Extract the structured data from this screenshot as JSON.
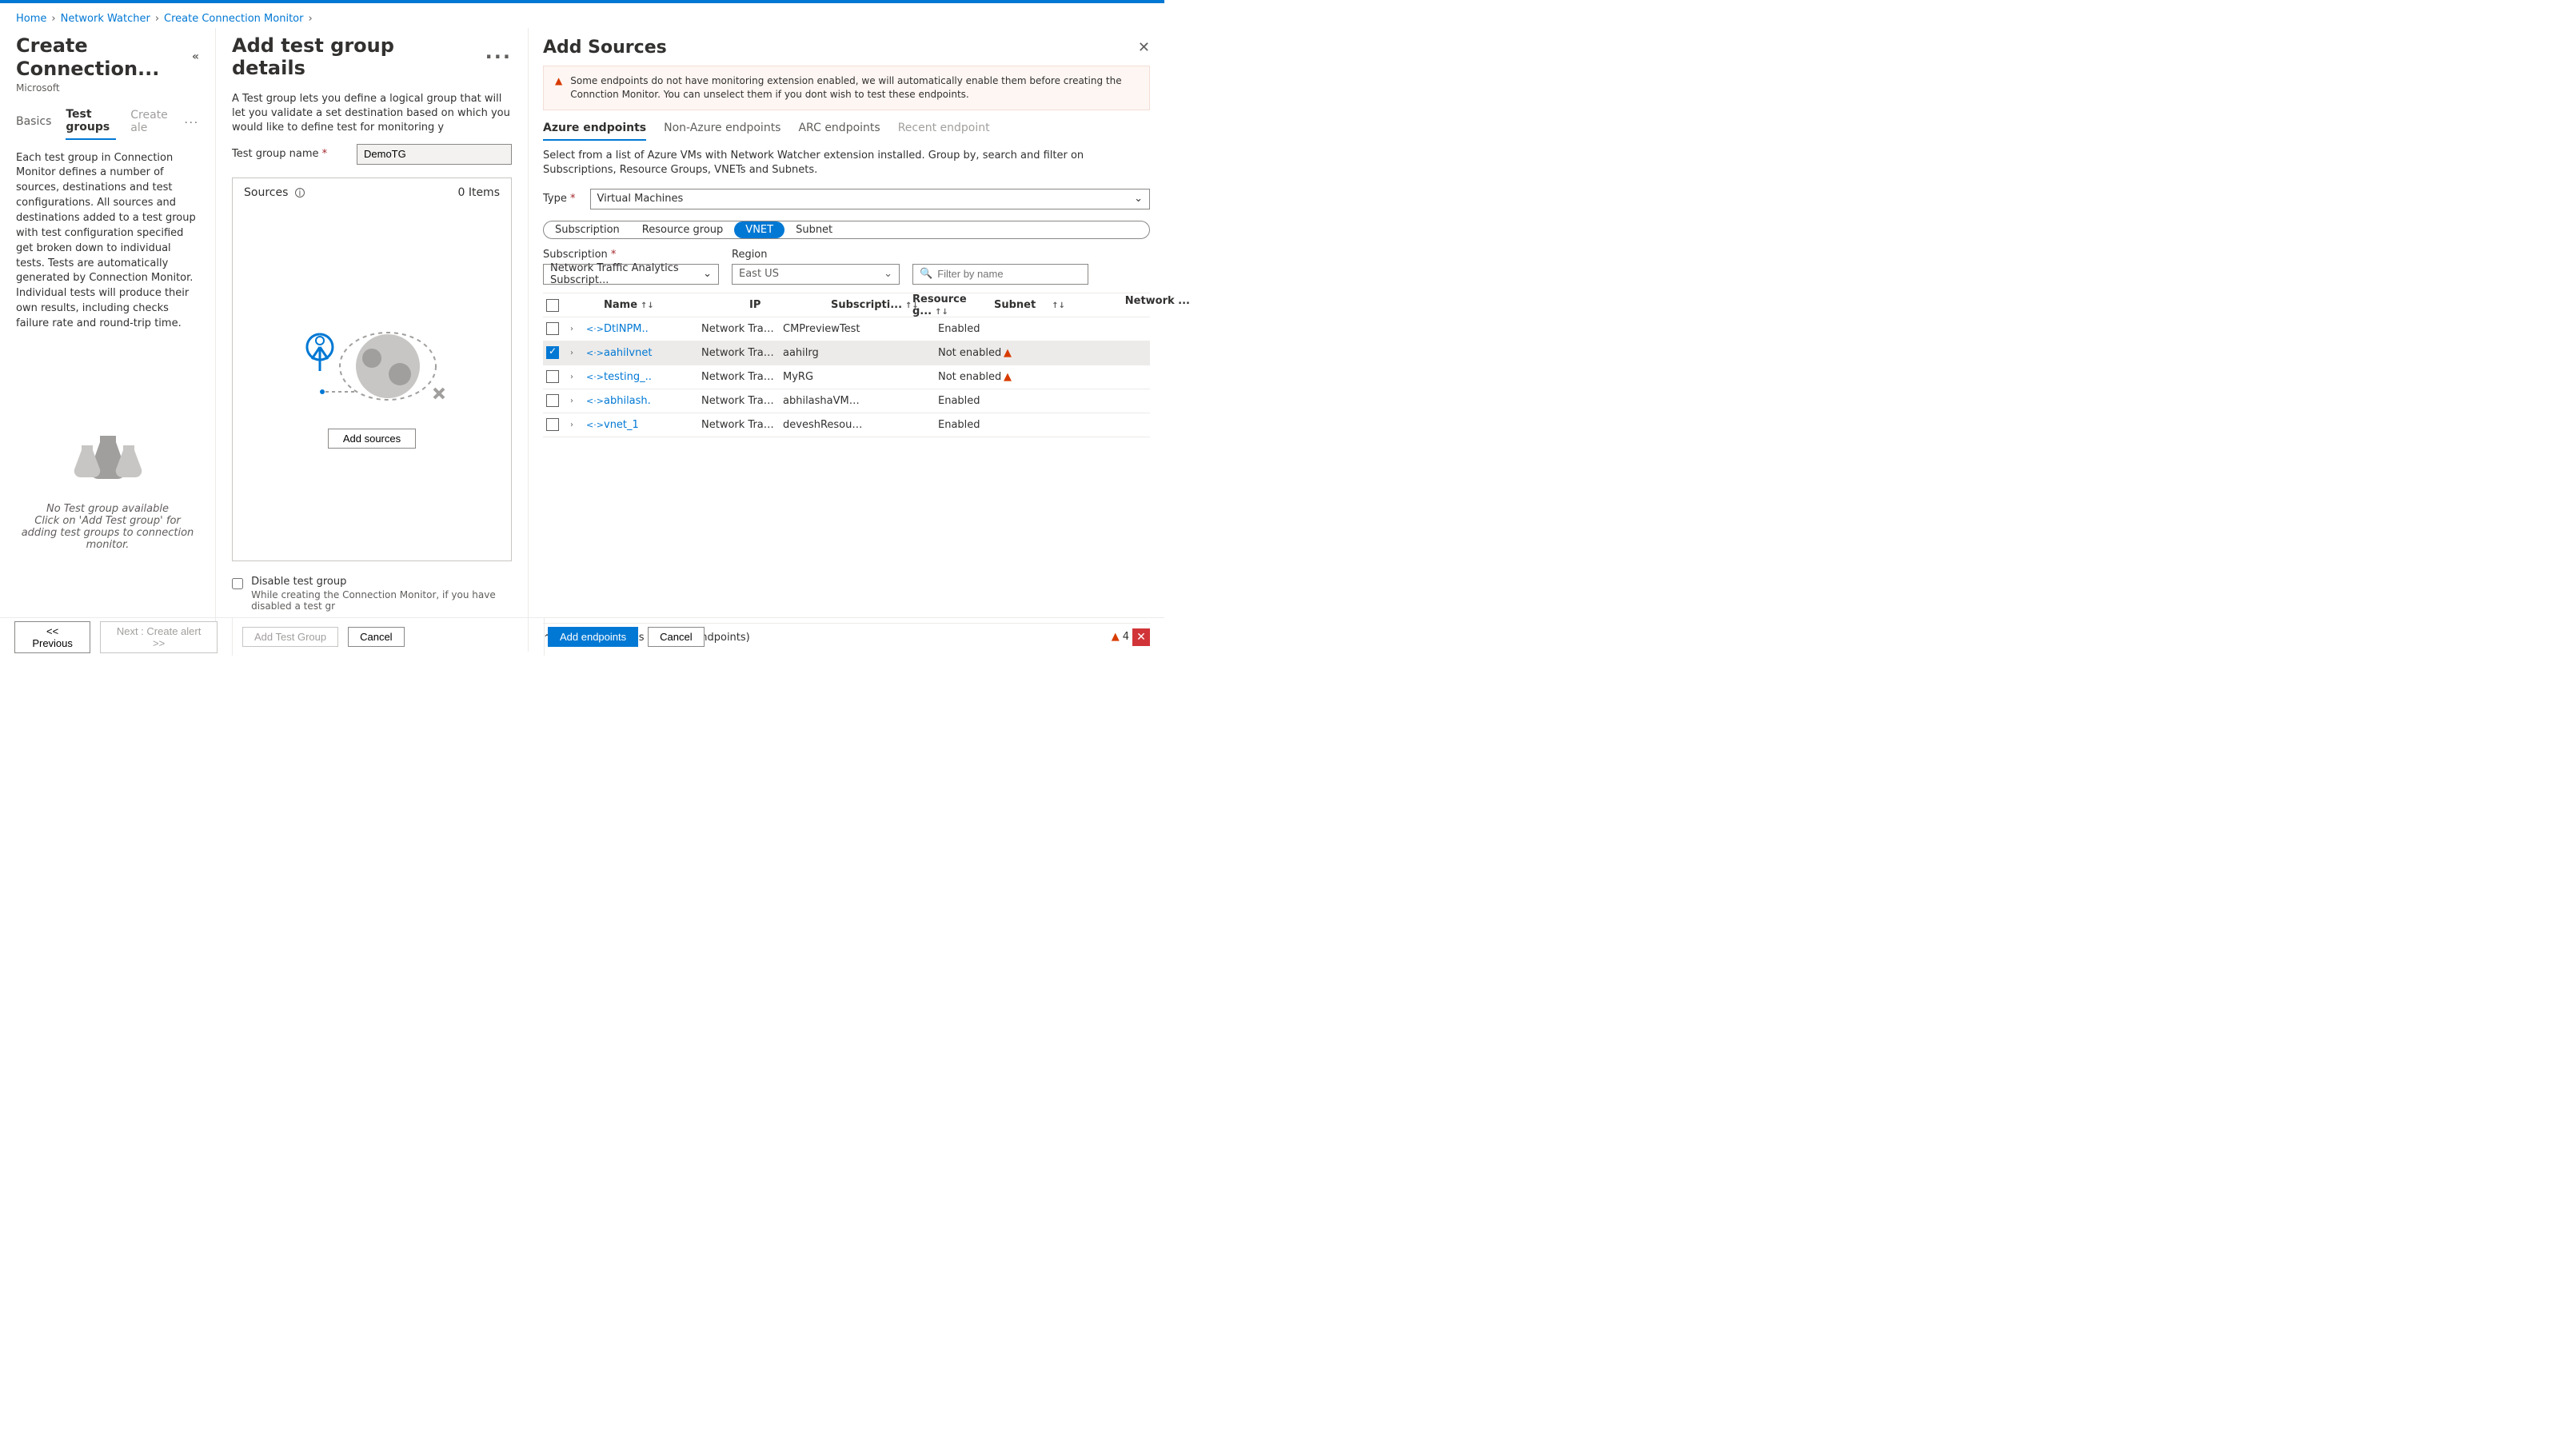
{
  "breadcrumb": {
    "home": "Home",
    "nw": "Network Watcher",
    "create": "Create Connection Monitor"
  },
  "leftpane": {
    "title": "Create Connection...",
    "subtitle": "Microsoft",
    "tabs": {
      "basics": "Basics",
      "testgroups": "Test groups",
      "alerts": "Create ale"
    },
    "desc": "Each test group in Connection Monitor defines a number of sources, destinations and test configurations. All sources and destinations added to a test group with test configuration specified get broken down to individual tests. Tests are automatically generated by Connection Monitor. Individual tests will produce their own results, including checks failure rate and round-trip time.",
    "empty_title": "No Test group available",
    "empty_sub": "Click on 'Add Test group' for adding test groups to connection monitor."
  },
  "midpane": {
    "title": "Add test group details",
    "desc": "A Test group lets you define a logical group that will let you validate a set destination based on which you would like to define test for monitoring y",
    "form": {
      "tgname_label": "Test group name",
      "tgname_value": "DemoTG"
    },
    "sources_header": "Sources",
    "items_count": "0 Items",
    "add_sources_btn": "Add sources",
    "disable_label": "Disable test group",
    "disable_sub": "While creating the Connection Monitor, if you have disabled a test gr"
  },
  "rightpane": {
    "title": "Add Sources",
    "banner": "Some endpoints do not have monitoring extension enabled, we will automatically enable them before creating the Connction Monitor. You can unselect them if you dont wish to test these endpoints.",
    "tabs": {
      "azure": "Azure endpoints",
      "nonazure": "Non-Azure endpoints",
      "arc": "ARC endpoints",
      "recent": "Recent endpoint"
    },
    "desc": "Select from a list of Azure VMs with Network Watcher extension installed. Group by, search and filter on Subscriptions, Resource Groups, VNETs and Subnets.",
    "type_label": "Type",
    "type_value": "Virtual Machines",
    "pills": {
      "sub": "Subscription",
      "rg": "Resource group",
      "vnet": "VNET",
      "subnet": "Subnet"
    },
    "sub_label": "Subscription",
    "sub_value": "Network Traffic Analytics Subscript...",
    "region_label": "Region",
    "region_value": "East US",
    "filter_placeholder": "Filter by name",
    "columns": {
      "name": "Name",
      "ip": "IP",
      "sub": "Subscripti...",
      "rg": "Resource g...",
      "subnet": "Subnet",
      "net": "Network ..."
    },
    "rows": [
      {
        "name": "DtlNPM..",
        "sub": "Network Traffic...",
        "rg": "CMPreviewTest",
        "net": "Enabled",
        "warn": false,
        "checked": false
      },
      {
        "name": "aahilvnet",
        "sub": "Network Traffic...",
        "rg": "aahilrg",
        "net": "Not enabled",
        "warn": true,
        "checked": true
      },
      {
        "name": "testing_..",
        "sub": "Network Traffic...",
        "rg": "MyRG",
        "net": "Not enabled",
        "warn": true,
        "checked": false
      },
      {
        "name": "abhilash.",
        "sub": "Network Traffic...",
        "rg": "abhilashaVM_g...",
        "net": "Enabled",
        "warn": false,
        "checked": false
      },
      {
        "name": "vnet_1",
        "sub": "Network Traffic...",
        "rg": "deveshResourc...",
        "net": "Enabled",
        "warn": false,
        "checked": false
      }
    ],
    "summary": "Selected sources (1 Azure endpoints)"
  },
  "footer": {
    "prev": "<<  Previous",
    "next": "Next : Create alert  >>",
    "addtg": "Add Test Group",
    "cancel": "Cancel",
    "addep": "Add endpoints",
    "err_count": "4"
  }
}
